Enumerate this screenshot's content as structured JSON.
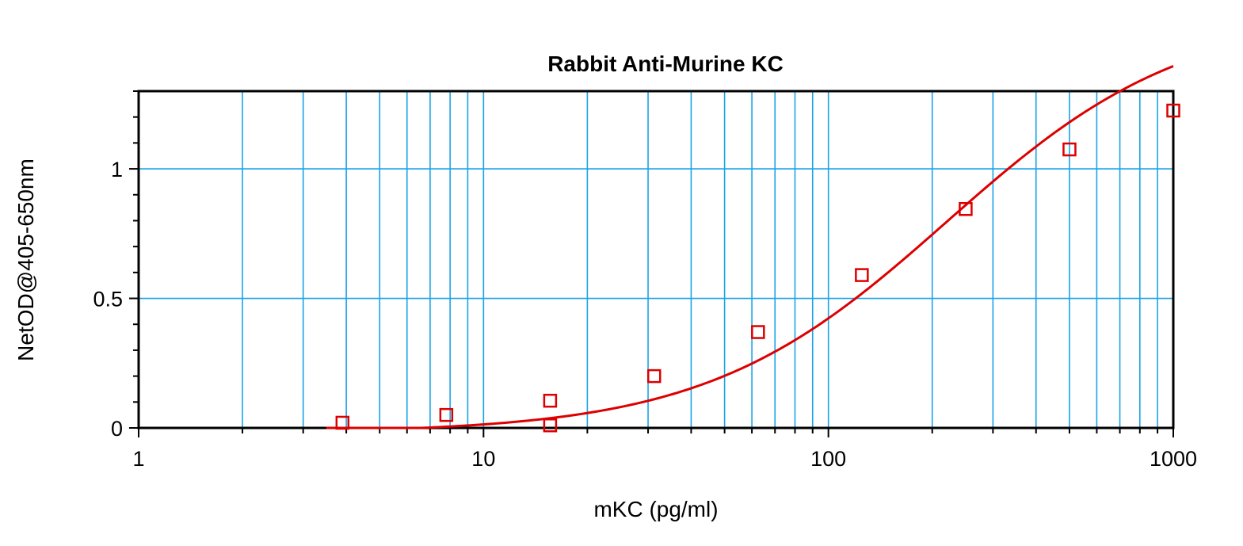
{
  "chart_data": {
    "type": "scatter",
    "title": "Rabbit Anti-Murine KC",
    "xlabel": "mKC (pg/ml)",
    "ylabel": "NetOD@405-650nm",
    "x_scale": "log",
    "xlim": [
      1,
      1000
    ],
    "ylim": [
      0,
      1.3
    ],
    "x_ticks": [
      {
        "value": 1,
        "label": "1"
      },
      {
        "value": 10,
        "label": "10"
      },
      {
        "value": 100,
        "label": "100"
      },
      {
        "value": 1000,
        "label": "1000"
      }
    ],
    "y_ticks": [
      {
        "value": 0,
        "label": "0"
      },
      {
        "value": 0.5,
        "label": "0.5"
      },
      {
        "value": 1,
        "label": "1"
      }
    ],
    "grid": true,
    "legend": "none",
    "colors": {
      "grid": "#1aa3e8",
      "series": "#dd0000",
      "axis": "#000000"
    },
    "series": [
      {
        "marker": "open-square",
        "x": [
          3.9,
          7.8,
          15.6,
          15.6,
          31.25,
          62.5,
          125,
          250,
          500,
          1000
        ],
        "y": [
          0.02,
          0.05,
          0.105,
          0.01,
          0.2,
          0.37,
          0.59,
          0.845,
          1.075,
          1.225
        ]
      }
    ],
    "fit_curve": {
      "type": "4PL",
      "A": -0.02,
      "D": 1.61,
      "C": 220,
      "B": 1.25,
      "x_range": [
        3.5,
        1000
      ]
    }
  }
}
